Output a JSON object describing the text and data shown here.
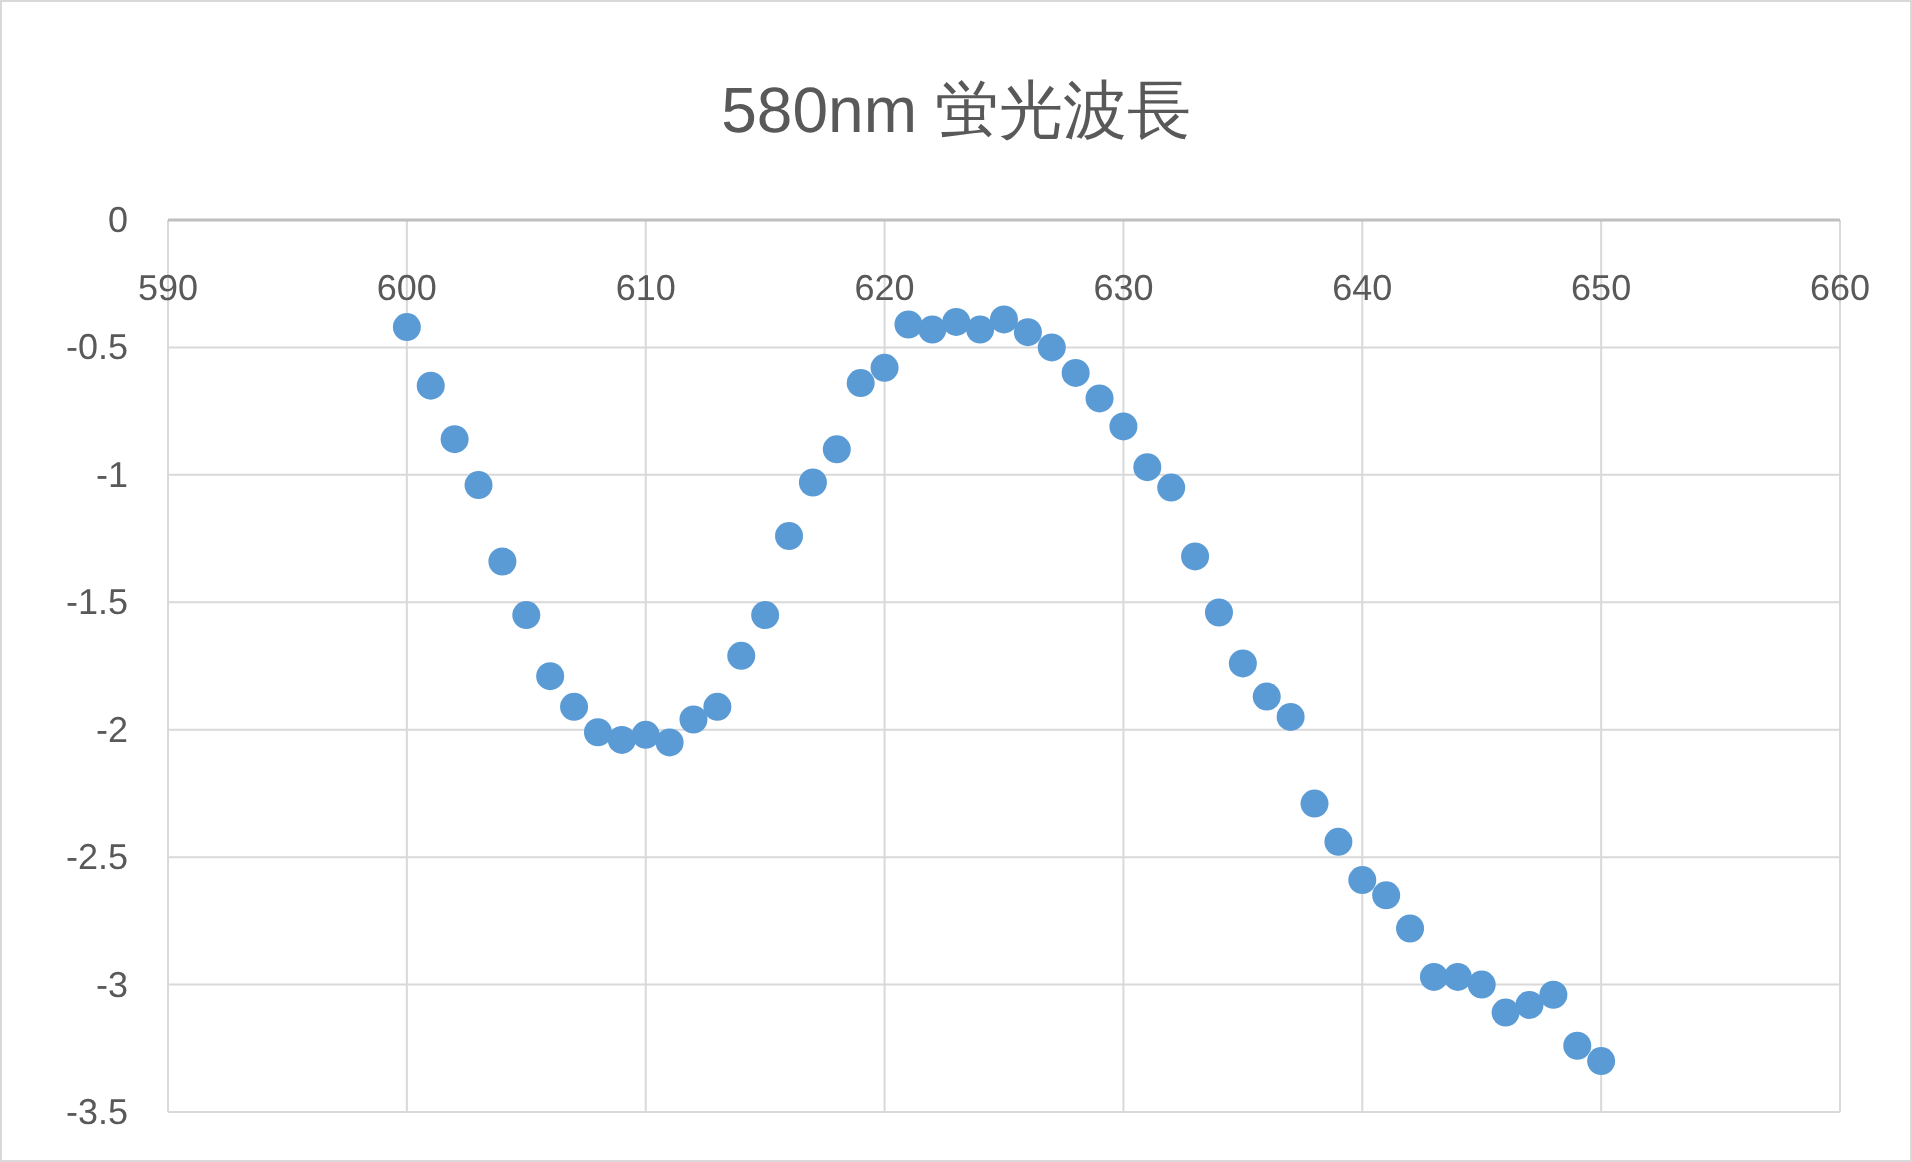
{
  "chart_data": {
    "type": "scatter",
    "title": "580nm 蛍光波長",
    "xlim": [
      590,
      660
    ],
    "xticks": [
      590,
      600,
      610,
      620,
      630,
      640,
      650,
      660
    ],
    "ylim": [
      -3.5,
      0
    ],
    "yticks": [
      0,
      -0.5,
      -1,
      -1.5,
      -2,
      -2.5,
      -3,
      -3.5
    ],
    "grid": true,
    "marker": "circle",
    "series": [
      {
        "color": "#5b9bd5",
        "x": [
          600,
          601,
          602,
          603,
          604,
          605,
          606,
          607,
          608,
          609,
          610,
          611,
          612,
          613,
          614,
          615,
          616,
          617,
          618,
          619,
          620,
          621,
          622,
          623,
          624,
          625,
          626,
          627,
          628,
          629,
          630,
          631,
          632,
          633,
          634,
          635,
          636,
          637,
          638,
          639,
          640,
          641,
          642,
          643,
          644,
          645,
          646,
          647,
          648,
          649,
          650
        ],
        "values": [
          -0.42,
          -0.65,
          -0.86,
          -1.04,
          -1.34,
          -1.55,
          -1.79,
          -1.91,
          -2.01,
          -2.04,
          -2.02,
          -2.05,
          -1.96,
          -1.91,
          -1.71,
          -1.55,
          -1.24,
          -1.03,
          -0.9,
          -0.64,
          -0.58,
          -0.41,
          -0.43,
          -0.4,
          -0.43,
          -0.39,
          -0.44,
          -0.5,
          -0.6,
          -0.7,
          -0.81,
          -0.97,
          -1.05,
          -1.32,
          -1.54,
          -1.74,
          -1.87,
          -1.95,
          -2.29,
          -2.44,
          -2.59,
          -2.65,
          -2.78,
          -2.97,
          -2.97,
          -3.0,
          -3.11,
          -3.08,
          -3.04,
          -3.24,
          -3.3
        ]
      }
    ]
  }
}
